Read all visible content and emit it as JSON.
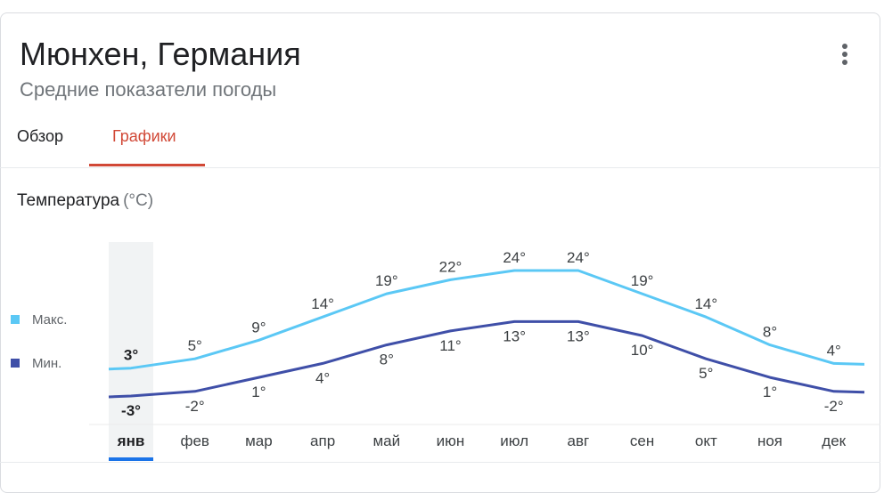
{
  "header": {
    "title": "Мюнхен, Германия",
    "subtitle": "Средние показатели погоды",
    "more_icon": "more-vert-icon"
  },
  "tabs": [
    {
      "label": "Обзор",
      "active": false
    },
    {
      "label": "Графики",
      "active": true
    }
  ],
  "section": {
    "title": "Температура",
    "unit": "(°C)"
  },
  "legend": {
    "max_label": "Макс.",
    "min_label": "Мин."
  },
  "colors": {
    "max_series": "#5bc8f5",
    "min_series": "#3f4fa8",
    "active_tab": "#d14836",
    "selected_month": "#1a73e8"
  },
  "chart_data": {
    "type": "line",
    "categories": [
      "янв",
      "фев",
      "мар",
      "апр",
      "май",
      "июн",
      "июл",
      "авг",
      "сен",
      "окт",
      "ноя",
      "дек"
    ],
    "series": [
      {
        "name": "Макс.",
        "values": [
          3,
          5,
          9,
          14,
          19,
          22,
          24,
          24,
          19,
          14,
          8,
          4
        ],
        "labels": [
          "3°",
          "5°",
          "9°",
          "14°",
          "19°",
          "22°",
          "24°",
          "24°",
          "19°",
          "14°",
          "8°",
          "4°"
        ]
      },
      {
        "name": "Мин.",
        "values": [
          -3,
          -2,
          1,
          4,
          8,
          11,
          13,
          13,
          10,
          5,
          1,
          -2
        ],
        "labels": [
          "-3°",
          "-2°",
          "1°",
          "4°",
          "8°",
          "11°",
          "13°",
          "13°",
          "10°",
          "5°",
          "1°",
          "-2°"
        ]
      }
    ],
    "selected_index": 0,
    "ylim": [
      -3,
      24
    ],
    "grid": false,
    "legend_position": "left"
  }
}
